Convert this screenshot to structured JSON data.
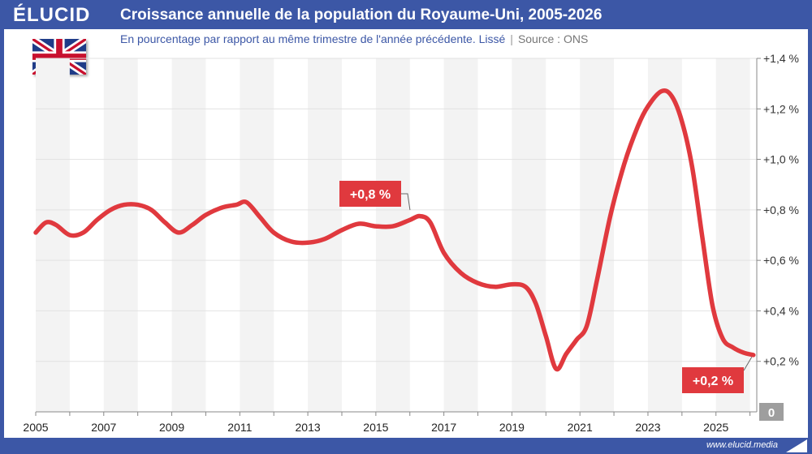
{
  "header": {
    "logo": "ÉLUCID",
    "title": "Croissance annuelle de la population du Royaume-Uni, 2005-2026",
    "subtitle": "En pourcentage par rapport au même trimestre de l'année précédente. Lissé",
    "source": "Source : ONS"
  },
  "footer": {
    "url": "www.elucid.media"
  },
  "colors": {
    "brand": "#3c57a6",
    "line": "#e0393e",
    "band": "#f3f3f3",
    "zero_box": "#9e9e9e"
  },
  "flag_icon": "uk-flag",
  "chart_data": {
    "type": "line",
    "title": "Croissance annuelle de la population du Royaume-Uni, 2005-2026",
    "xlabel": "",
    "ylabel": "",
    "xlim": [
      2005,
      2026.2
    ],
    "ylim": [
      0,
      1.4
    ],
    "y_axis_position": "right",
    "yticks": [
      0.2,
      0.4,
      0.6,
      0.8,
      1.0,
      1.2,
      1.4
    ],
    "ytick_labels": [
      "+0,2 %",
      "+0,4 %",
      "+0,6 %",
      "+0,8 %",
      "+1,0 %",
      "+1,2 %",
      "+1,4 %"
    ],
    "zero_label": "0",
    "xticks": [
      2005,
      2007,
      2009,
      2011,
      2013,
      2015,
      2017,
      2019,
      2021,
      2023,
      2025
    ],
    "xtick_labels": [
      "2005",
      "2007",
      "2009",
      "2011",
      "2013",
      "2015",
      "2017",
      "2019",
      "2021",
      "2023",
      "2025"
    ],
    "grid": true,
    "alternating_year_bands": true,
    "series": [
      {
        "name": "",
        "x": [
          2005.0,
          2005.3,
          2005.6,
          2006.0,
          2006.4,
          2006.8,
          2007.2,
          2007.6,
          2008.0,
          2008.4,
          2008.8,
          2009.2,
          2009.6,
          2010.0,
          2010.5,
          2010.9,
          2011.2,
          2011.6,
          2012.0,
          2012.5,
          2013.0,
          2013.5,
          2014.0,
          2014.5,
          2015.0,
          2015.5,
          2016.0,
          2016.3,
          2016.6,
          2017.0,
          2017.5,
          2018.0,
          2018.5,
          2019.0,
          2019.4,
          2019.7,
          2020.0,
          2020.3,
          2020.6,
          2020.9,
          2021.2,
          2021.5,
          2021.9,
          2022.3,
          2022.7,
          2023.0,
          2023.4,
          2023.7,
          2024.0,
          2024.3,
          2024.6,
          2024.9,
          2025.2,
          2025.5,
          2025.8,
          2026.1
        ],
        "y": [
          0.71,
          0.75,
          0.74,
          0.7,
          0.71,
          0.76,
          0.8,
          0.82,
          0.82,
          0.8,
          0.75,
          0.71,
          0.74,
          0.78,
          0.81,
          0.82,
          0.83,
          0.77,
          0.71,
          0.675,
          0.67,
          0.685,
          0.72,
          0.745,
          0.735,
          0.735,
          0.76,
          0.775,
          0.75,
          0.63,
          0.55,
          0.51,
          0.495,
          0.505,
          0.495,
          0.43,
          0.3,
          0.17,
          0.23,
          0.285,
          0.34,
          0.52,
          0.78,
          0.98,
          1.13,
          1.21,
          1.27,
          1.25,
          1.15,
          0.97,
          0.69,
          0.42,
          0.29,
          0.255,
          0.235,
          0.225
        ]
      }
    ],
    "annotations": [
      {
        "label": "+0,8 %",
        "x": 2016.1,
        "y": 0.78,
        "position": "above-left"
      },
      {
        "label": "+0,2 %",
        "x": 2026.1,
        "y": 0.23,
        "position": "below-left"
      }
    ]
  }
}
